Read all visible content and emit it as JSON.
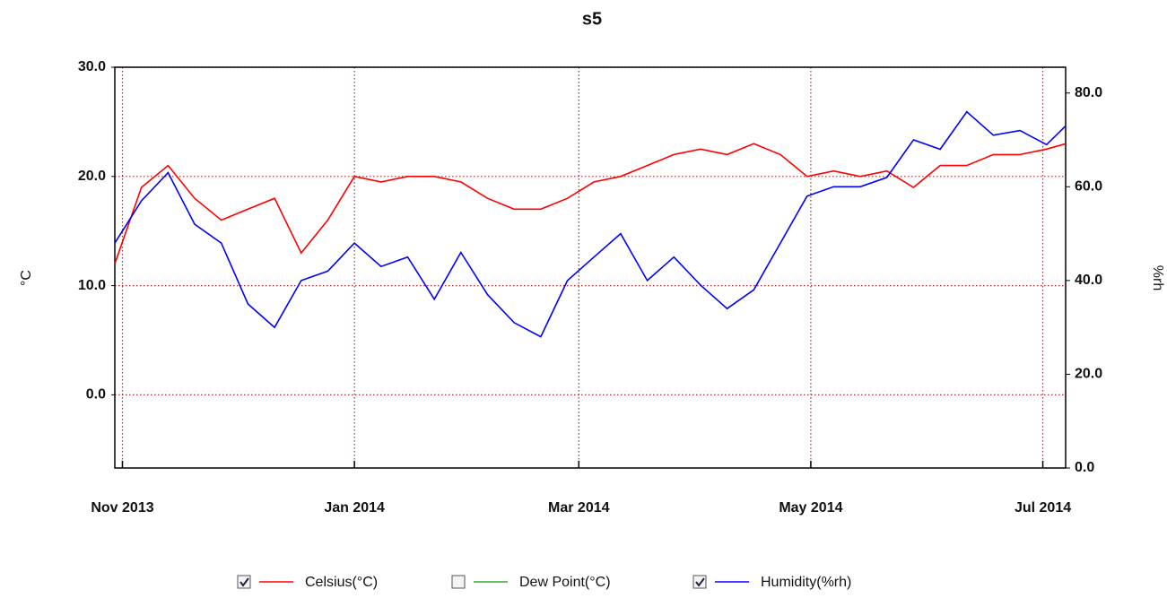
{
  "chart_data": {
    "type": "line",
    "title": "s5",
    "ylabel": "°C",
    "y2label": "%rh",
    "x": [
      "2013-10-30",
      "2013-11-06",
      "2013-11-13",
      "2013-11-20",
      "2013-11-27",
      "2013-12-04",
      "2013-12-11",
      "2013-12-18",
      "2013-12-25",
      "2014-01-01",
      "2014-01-08",
      "2014-01-15",
      "2014-01-22",
      "2014-01-29",
      "2014-02-05",
      "2014-02-12",
      "2014-02-19",
      "2014-02-26",
      "2014-03-05",
      "2014-03-12",
      "2014-03-19",
      "2014-03-26",
      "2014-04-02",
      "2014-04-09",
      "2014-04-16",
      "2014-04-23",
      "2014-04-30",
      "2014-05-07",
      "2014-05-14",
      "2014-05-21",
      "2014-05-28",
      "2014-06-04",
      "2014-06-11",
      "2014-06-18",
      "2014-06-25",
      "2014-07-02",
      "2014-07-07"
    ],
    "series": [
      {
        "name": "Celsius(°C)",
        "color": "#ff0000",
        "checked": true,
        "axis": "y",
        "values": [
          12,
          19,
          21,
          18,
          16,
          17,
          18,
          13,
          16,
          20,
          19.5,
          20,
          20,
          19.5,
          18,
          17,
          17,
          18,
          19.5,
          20,
          21,
          22,
          22.5,
          22,
          23,
          22,
          20,
          20.5,
          20,
          20.5,
          19,
          21,
          21,
          22,
          22,
          22.5,
          23
        ]
      },
      {
        "name": "Dew Point(°C)",
        "color": "#33aa33",
        "checked": false,
        "axis": "y",
        "values": [
          null,
          null,
          null,
          null,
          null,
          null,
          null,
          null,
          null,
          null,
          null,
          null,
          null,
          null,
          null,
          null,
          null,
          null,
          null,
          null,
          null,
          null,
          null,
          null,
          null,
          null,
          null,
          null,
          null,
          null,
          null,
          null,
          null,
          null,
          null,
          null,
          null
        ]
      },
      {
        "name": "Humidity(%rh)",
        "color": "#0000ff",
        "checked": true,
        "axis": "y2",
        "values": [
          48,
          57,
          63,
          52,
          48,
          35,
          30,
          40,
          42,
          48,
          43,
          45,
          36,
          46,
          37,
          31,
          28,
          40,
          45,
          50,
          40,
          45,
          39,
          34,
          38,
          48,
          58,
          60,
          60,
          62,
          70,
          68,
          76,
          71,
          72,
          69,
          73
        ]
      }
    ],
    "xlim": [
      "2013-10-30",
      "2014-07-07"
    ],
    "xticks": [
      {
        "value": "2013-11-01",
        "label": "Nov 2013"
      },
      {
        "value": "2014-01-01",
        "label": "Jan 2014"
      },
      {
        "value": "2014-03-01",
        "label": "Mar 2014"
      },
      {
        "value": "2014-05-01",
        "label": "May 2014"
      },
      {
        "value": "2014-07-01",
        "label": "Jul 2014"
      }
    ],
    "ylim": [
      -6.7,
      30
    ],
    "yticks": [
      {
        "value": 0,
        "label": "0.0"
      },
      {
        "value": 10,
        "label": "10.0"
      },
      {
        "value": 20,
        "label": "20.0"
      },
      {
        "value": 30,
        "label": "30.0"
      }
    ],
    "y2lim": [
      0,
      85.5
    ],
    "y2ticks": [
      {
        "value": 0,
        "label": "0.0"
      },
      {
        "value": 20,
        "label": "20.0"
      },
      {
        "value": 40,
        "label": "40.0"
      },
      {
        "value": 60,
        "label": "60.0"
      },
      {
        "value": 80,
        "label": "80.0"
      }
    ],
    "grid": true
  }
}
